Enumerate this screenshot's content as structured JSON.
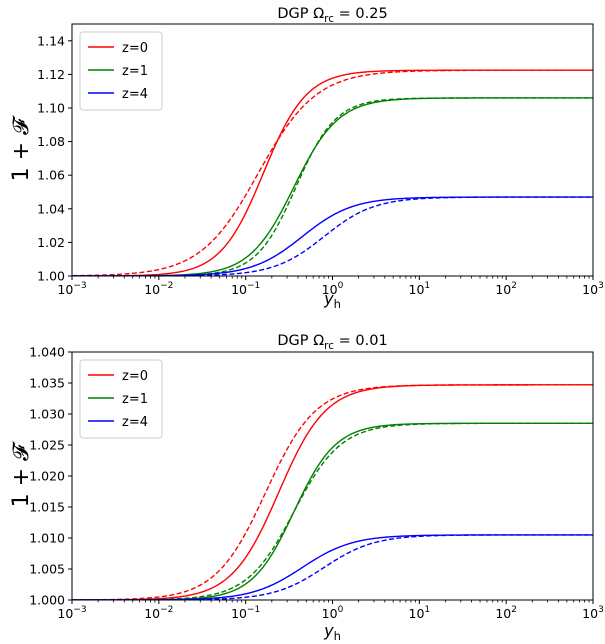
{
  "chart_data": [
    {
      "type": "line",
      "title_prefix": "DGP",
      "title_omega": "Ω",
      "title_sub": "rc",
      "title_suffix": " = 0.25",
      "xlabel": "y",
      "xlabel_sub": "h",
      "ylabel": "1 + 𝓕",
      "x_scale": "log",
      "xlim": [
        0.001,
        1000
      ],
      "ylim": [
        1.0,
        1.15
      ],
      "xticks": [
        0.001,
        0.01,
        0.1,
        1,
        10,
        100,
        1000
      ],
      "xtick_labels": [
        {
          "base": "10",
          "exp": "−3"
        },
        {
          "base": "10",
          "exp": "−2"
        },
        {
          "base": "10",
          "exp": "−1"
        },
        {
          "base": "10",
          "exp": "0"
        },
        {
          "base": "10",
          "exp": "1"
        },
        {
          "base": "10",
          "exp": "2"
        },
        {
          "base": "10",
          "exp": "3"
        }
      ],
      "yticks": [
        1.0,
        1.02,
        1.04,
        1.06,
        1.08,
        1.1,
        1.12,
        1.14
      ],
      "ytick_labels": [
        "1.00",
        "1.02",
        "1.04",
        "1.06",
        "1.08",
        "1.10",
        "1.12",
        "1.14"
      ],
      "legend_position": "upper-left",
      "series": [
        {
          "name": "z=0",
          "color": "#ff0000",
          "style": "solid",
          "asymptote": 1.1225,
          "x0": 0.16,
          "n": 1.75
        },
        {
          "name": "z=0",
          "color": "#ff0000",
          "style": "dashed",
          "asymptote": 1.1225,
          "x0": 0.14,
          "n": 1.3
        },
        {
          "name": "z=1",
          "color": "#008000",
          "style": "solid",
          "asymptote": 1.106,
          "x0": 0.36,
          "n": 1.7
        },
        {
          "name": "z=1",
          "color": "#008000",
          "style": "dashed",
          "asymptote": 1.106,
          "x0": 0.38,
          "n": 1.9
        },
        {
          "name": "z=4",
          "color": "#0000ff",
          "style": "solid",
          "asymptote": 1.047,
          "x0": 0.45,
          "n": 1.5
        },
        {
          "name": "z=4",
          "color": "#0000ff",
          "style": "dashed",
          "asymptote": 1.047,
          "x0": 0.8,
          "n": 1.5
        }
      ],
      "legend": [
        {
          "label": "z=0",
          "color": "#ff0000"
        },
        {
          "label": "z=1",
          "color": "#008000"
        },
        {
          "label": "z=4",
          "color": "#0000ff"
        }
      ]
    },
    {
      "type": "line",
      "title_prefix": "DGP",
      "title_omega": "Ω",
      "title_sub": "rc",
      "title_suffix": " = 0.01",
      "xlabel": "y",
      "xlabel_sub": "h",
      "ylabel": "1 + 𝓕",
      "x_scale": "log",
      "xlim": [
        0.001,
        1000
      ],
      "ylim": [
        1.0,
        1.04
      ],
      "xticks": [
        0.001,
        0.01,
        0.1,
        1,
        10,
        100,
        1000
      ],
      "xtick_labels": [
        {
          "base": "10",
          "exp": "−3"
        },
        {
          "base": "10",
          "exp": "−2"
        },
        {
          "base": "10",
          "exp": "−1"
        },
        {
          "base": "10",
          "exp": "0"
        },
        {
          "base": "10",
          "exp": "1"
        },
        {
          "base": "10",
          "exp": "2"
        },
        {
          "base": "10",
          "exp": "3"
        }
      ],
      "yticks": [
        1.0,
        1.005,
        1.01,
        1.015,
        1.02,
        1.025,
        1.03,
        1.035,
        1.04
      ],
      "ytick_labels": [
        "1.000",
        "1.005",
        "1.010",
        "1.015",
        "1.020",
        "1.025",
        "1.030",
        "1.035",
        "1.040"
      ],
      "legend_position": "upper-left",
      "series": [
        {
          "name": "z=0",
          "color": "#ff0000",
          "style": "solid",
          "asymptote": 1.0347,
          "x0": 0.24,
          "n": 1.6
        },
        {
          "name": "z=0",
          "color": "#ff0000",
          "style": "dashed",
          "asymptote": 1.0347,
          "x0": 0.17,
          "n": 1.5
        },
        {
          "name": "z=1",
          "color": "#008000",
          "style": "solid",
          "asymptote": 1.0285,
          "x0": 0.36,
          "n": 1.8
        },
        {
          "name": "z=1",
          "color": "#008000",
          "style": "dashed",
          "asymptote": 1.0285,
          "x0": 0.36,
          "n": 1.6
        },
        {
          "name": "z=4",
          "color": "#0000ff",
          "style": "solid",
          "asymptote": 1.0105,
          "x0": 0.45,
          "n": 1.5
        },
        {
          "name": "z=4",
          "color": "#0000ff",
          "style": "dashed",
          "asymptote": 1.0105,
          "x0": 0.8,
          "n": 1.5
        }
      ],
      "legend": [
        {
          "label": "z=0",
          "color": "#ff0000"
        },
        {
          "label": "z=1",
          "color": "#008000"
        },
        {
          "label": "z=4",
          "color": "#0000ff"
        }
      ]
    }
  ]
}
